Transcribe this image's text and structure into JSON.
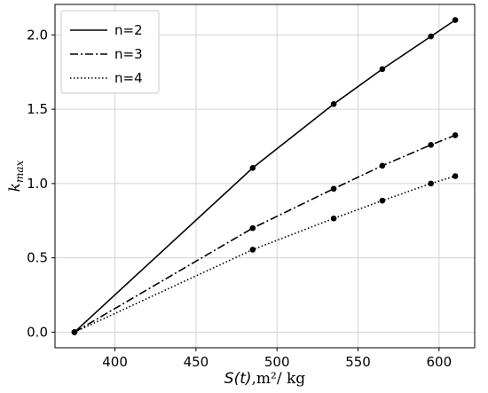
{
  "chart_data": {
    "type": "line",
    "title": "",
    "x": [
      375,
      485,
      535,
      565,
      595,
      610
    ],
    "series": [
      {
        "name": "n=2",
        "style": "solid",
        "values": [
          0.0,
          1.105,
          1.535,
          1.77,
          1.99,
          2.1
        ]
      },
      {
        "name": "n=3",
        "style": "dashdot",
        "values": [
          0.0,
          0.7,
          0.965,
          1.12,
          1.26,
          1.325
        ]
      },
      {
        "name": "n=4",
        "style": "dotted",
        "values": [
          0.0,
          0.555,
          0.765,
          0.885,
          1.0,
          1.05
        ]
      }
    ],
    "xlabel": {
      "italic": "S(t)",
      "rest": ",m²/ kg"
    },
    "ylabel": {
      "base": "k",
      "sub": "max"
    },
    "xlim": [
      363,
      622
    ],
    "ylim": [
      -0.105,
      2.205
    ],
    "xticks": [
      400,
      450,
      500,
      550,
      600
    ],
    "xtick_labels": [
      "400",
      "450",
      "500",
      "550",
      "600"
    ],
    "yticks": [
      0.0,
      0.5,
      1.0,
      1.5,
      2.0
    ],
    "ytick_labels": [
      "0.0",
      "0.5",
      "1.0",
      "1.5",
      "2.0"
    ],
    "grid": true,
    "legend_position": "top-left",
    "line_color": "#000000",
    "grid_color": "#d3d3d3"
  }
}
